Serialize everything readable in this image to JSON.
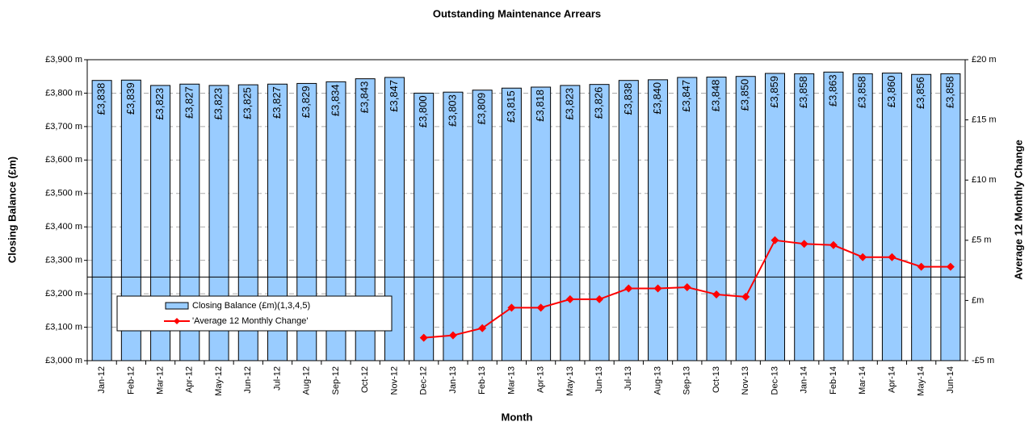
{
  "chart_data": {
    "type": "bar_line",
    "title": "Outstanding Maintenance Arrears",
    "xlabel": "Month",
    "ylabel": "Closing Balance (£m)",
    "y2label": "Average 12 Monthly Change",
    "categories": [
      "Jan-12",
      "Feb-12",
      "Mar-12",
      "Apr-12",
      "May-12",
      "Jun-12",
      "Jul-12",
      "Aug-12",
      "Sep-12",
      "Oct-12",
      "Nov-12",
      "Dec-12",
      "Jan-13",
      "Feb-13",
      "Mar-13",
      "Apr-13",
      "May-13",
      "Jun-13",
      "Jul-13",
      "Aug-13",
      "Sep-13",
      "Oct-13",
      "Nov-13",
      "Dec-13",
      "Jan-14",
      "Feb-14",
      "Mar-14",
      "Apr-14",
      "May-14",
      "Jun-14"
    ],
    "series": [
      {
        "name": "Closing Balance (£m)(1,3,4,5)",
        "type": "bar",
        "color": "#99ccff",
        "values": [
          3838,
          3839,
          3823,
          3827,
          3823,
          3825,
          3827,
          3829,
          3834,
          3843,
          3847,
          3800,
          3803,
          3809,
          3815,
          3818,
          3823,
          3826,
          3838,
          3840,
          3847,
          3848,
          3850,
          3859,
          3858,
          3863,
          3858,
          3860,
          3856,
          3858
        ],
        "value_labels": [
          "£3,838",
          "£3,839",
          "£3,823",
          "£3,827",
          "£3,823",
          "£3,825",
          "£3,827",
          "£3,829",
          "£3,834",
          "£3,843",
          "£3,847",
          "£3,800",
          "£3,803",
          "£3,809",
          "£3,815",
          "£3,818",
          "£3,823",
          "£3,826",
          "£3,838",
          "£3,840",
          "£3,847",
          "£3,848",
          "£3,850",
          "£3,859",
          "£3,858",
          "£3,863",
          "£3,858",
          "£3,860",
          "£3,856",
          "£3,858"
        ]
      },
      {
        "name": "'Average 12 Monthly Change'",
        "type": "line",
        "axis": "y2",
        "color": "#ff0000",
        "values": [
          null,
          null,
          null,
          null,
          null,
          null,
          null,
          null,
          null,
          null,
          null,
          -3.1,
          -2.9,
          -2.3,
          -0.6,
          -0.6,
          0.1,
          0.1,
          1.0,
          1.0,
          1.1,
          0.5,
          0.3,
          5.0,
          4.7,
          4.6,
          3.6,
          3.6,
          2.8,
          2.8
        ]
      }
    ],
    "ylim": [
      3000,
      3900
    ],
    "yticks": [
      {
        "value": 3000,
        "label": "£3,000 m"
      },
      {
        "value": 3100,
        "label": "£3,100 m"
      },
      {
        "value": 3200,
        "label": "£3,200 m"
      },
      {
        "value": 3300,
        "label": "£3,300 m"
      },
      {
        "value": 3400,
        "label": "£3,400 m"
      },
      {
        "value": 3500,
        "label": "£3,500 m"
      },
      {
        "value": 3600,
        "label": "£3,600 m"
      },
      {
        "value": 3700,
        "label": "£3,700 m"
      },
      {
        "value": 3800,
        "label": "£3,800 m"
      },
      {
        "value": 3900,
        "label": "£3,900 m"
      }
    ],
    "y2lim": [
      -5,
      20
    ],
    "y2ticks": [
      {
        "value": -5,
        "label": "-£5 m"
      },
      {
        "value": 0,
        "label": "£m"
      },
      {
        "value": 5,
        "label": "£5 m"
      },
      {
        "value": 10,
        "label": "£10 m"
      },
      {
        "value": 15,
        "label": "£15 m"
      },
      {
        "value": 20,
        "label": "£20 m"
      }
    ],
    "reference_line": 3250,
    "grid": true
  }
}
